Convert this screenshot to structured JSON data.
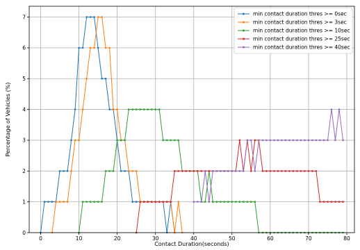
{
  "chart_data": {
    "type": "line",
    "xlabel": "Contact Duration(seconds)",
    "ylabel": "Percentage of Vehicles (%)",
    "xlim": [
      -3,
      82
    ],
    "ylim": [
      0,
      7.35
    ],
    "xticks": [
      0,
      10,
      20,
      30,
      40,
      50,
      60,
      70,
      80
    ],
    "yticks": [
      0,
      1,
      2,
      3,
      4,
      5,
      6,
      7
    ],
    "grid": true,
    "legend_position": "top-right",
    "series": [
      {
        "name": "min contact duration thres >= 0sec",
        "color": "#1f77b4",
        "points": [
          [
            0,
            0
          ],
          [
            1,
            1
          ],
          [
            2,
            1
          ],
          [
            3,
            1
          ],
          [
            4,
            1
          ],
          [
            5,
            2
          ],
          [
            6,
            2
          ],
          [
            7,
            2
          ],
          [
            8,
            3
          ],
          [
            9,
            4
          ],
          [
            10,
            6
          ],
          [
            11,
            6
          ],
          [
            12,
            7
          ],
          [
            13,
            7
          ],
          [
            14,
            7
          ],
          [
            15,
            6
          ],
          [
            16,
            5
          ],
          [
            17,
            5
          ],
          [
            18,
            4
          ],
          [
            19,
            4
          ],
          [
            20,
            3
          ],
          [
            21,
            2
          ],
          [
            22,
            2
          ],
          [
            23,
            2
          ],
          [
            24,
            1
          ],
          [
            25,
            1
          ],
          [
            26,
            1
          ],
          [
            27,
            1
          ],
          [
            28,
            1
          ],
          [
            29,
            1
          ],
          [
            30,
            1
          ],
          [
            31,
            1
          ],
          [
            32,
            1
          ],
          [
            33,
            0
          ],
          [
            34,
            1
          ],
          [
            35,
            0
          ]
        ]
      },
      {
        "name": "min contact duration thres >= 3sec",
        "color": "#ff7f0e",
        "points": [
          [
            3,
            0
          ],
          [
            4,
            1
          ],
          [
            5,
            1
          ],
          [
            6,
            1
          ],
          [
            7,
            1
          ],
          [
            8,
            2
          ],
          [
            9,
            3
          ],
          [
            10,
            3
          ],
          [
            11,
            4
          ],
          [
            12,
            5
          ],
          [
            13,
            6
          ],
          [
            14,
            6
          ],
          [
            15,
            7
          ],
          [
            16,
            7
          ],
          [
            17,
            6
          ],
          [
            18,
            6
          ],
          [
            19,
            4
          ],
          [
            20,
            4
          ],
          [
            21,
            3
          ],
          [
            22,
            3
          ],
          [
            23,
            2
          ],
          [
            24,
            2
          ],
          [
            25,
            2
          ],
          [
            26,
            1
          ],
          [
            27,
            1
          ],
          [
            28,
            1
          ],
          [
            29,
            1
          ],
          [
            30,
            1
          ],
          [
            31,
            1
          ],
          [
            32,
            1
          ],
          [
            33,
            1
          ],
          [
            34,
            1
          ],
          [
            35,
            0
          ],
          [
            36,
            1
          ],
          [
            37,
            0
          ]
        ]
      },
      {
        "name": "min contact duration thres >= 10sec",
        "color": "#2ca02c",
        "points": [
          [
            10,
            0
          ],
          [
            11,
            1
          ],
          [
            12,
            1
          ],
          [
            13,
            1
          ],
          [
            14,
            1
          ],
          [
            15,
            1
          ],
          [
            16,
            1
          ],
          [
            17,
            2
          ],
          [
            18,
            2
          ],
          [
            19,
            2
          ],
          [
            20,
            3
          ],
          [
            21,
            3
          ],
          [
            22,
            3
          ],
          [
            23,
            4
          ],
          [
            24,
            4
          ],
          [
            25,
            4
          ],
          [
            26,
            4
          ],
          [
            27,
            4
          ],
          [
            28,
            4
          ],
          [
            29,
            4
          ],
          [
            30,
            4
          ],
          [
            31,
            4
          ],
          [
            32,
            3
          ],
          [
            33,
            3
          ],
          [
            34,
            3
          ],
          [
            35,
            3
          ],
          [
            36,
            3
          ],
          [
            37,
            2
          ],
          [
            38,
            2
          ],
          [
            39,
            2
          ],
          [
            40,
            2
          ],
          [
            41,
            2
          ],
          [
            42,
            1
          ],
          [
            43,
            1
          ],
          [
            44,
            2
          ],
          [
            45,
            1
          ],
          [
            46,
            1
          ],
          [
            47,
            1
          ],
          [
            48,
            1
          ],
          [
            49,
            1
          ],
          [
            50,
            1
          ],
          [
            51,
            1
          ],
          [
            52,
            1
          ],
          [
            53,
            1
          ],
          [
            54,
            1
          ],
          [
            55,
            1
          ],
          [
            56,
            1
          ],
          [
            57,
            0
          ],
          [
            58,
            0
          ],
          [
            59,
            0
          ],
          [
            60,
            0
          ],
          [
            61,
            0
          ],
          [
            62,
            0
          ],
          [
            63,
            0
          ],
          [
            64,
            0
          ],
          [
            65,
            0
          ],
          [
            66,
            0
          ],
          [
            67,
            0
          ],
          [
            68,
            0
          ],
          [
            69,
            0
          ],
          [
            70,
            0
          ],
          [
            71,
            0
          ],
          [
            72,
            0
          ],
          [
            73,
            0
          ],
          [
            74,
            0
          ],
          [
            75,
            0
          ],
          [
            76,
            0
          ],
          [
            77,
            0
          ],
          [
            78,
            0
          ],
          [
            79,
            0
          ]
        ]
      },
      {
        "name": "min contact duration thres >= 25sec",
        "color": "#d62728",
        "points": [
          [
            25,
            0
          ],
          [
            26,
            1
          ],
          [
            27,
            1
          ],
          [
            28,
            1
          ],
          [
            29,
            1
          ],
          [
            30,
            1
          ],
          [
            31,
            1
          ],
          [
            32,
            1
          ],
          [
            33,
            1
          ],
          [
            34,
            1
          ],
          [
            35,
            2
          ],
          [
            36,
            2
          ],
          [
            37,
            2
          ],
          [
            38,
            2
          ],
          [
            39,
            2
          ],
          [
            40,
            2
          ],
          [
            41,
            2
          ],
          [
            42,
            2
          ],
          [
            43,
            2
          ],
          [
            44,
            2
          ],
          [
            45,
            2
          ],
          [
            46,
            2
          ],
          [
            47,
            2
          ],
          [
            48,
            2
          ],
          [
            49,
            2
          ],
          [
            50,
            2
          ],
          [
            51,
            2
          ],
          [
            52,
            3
          ],
          [
            53,
            2
          ],
          [
            54,
            3
          ],
          [
            55,
            2
          ],
          [
            56,
            3
          ],
          [
            57,
            3
          ],
          [
            58,
            2
          ],
          [
            59,
            2
          ],
          [
            60,
            2
          ],
          [
            61,
            2
          ],
          [
            62,
            2
          ],
          [
            63,
            2
          ],
          [
            64,
            2
          ],
          [
            65,
            2
          ],
          [
            66,
            2
          ],
          [
            67,
            2
          ],
          [
            68,
            2
          ],
          [
            69,
            2
          ],
          [
            70,
            2
          ],
          [
            71,
            2
          ],
          [
            72,
            2
          ],
          [
            73,
            1
          ],
          [
            74,
            1
          ],
          [
            75,
            1
          ],
          [
            76,
            1
          ],
          [
            77,
            1
          ],
          [
            78,
            1
          ],
          [
            79,
            1
          ]
        ]
      },
      {
        "name": "min contact duration thres >= 40sec",
        "color": "#9467bd",
        "points": [
          [
            40,
            1
          ],
          [
            41,
            1
          ],
          [
            42,
            1
          ],
          [
            43,
            2
          ],
          [
            44,
            1
          ],
          [
            45,
            2
          ],
          [
            46,
            2
          ],
          [
            47,
            2
          ],
          [
            48,
            2
          ],
          [
            49,
            2
          ],
          [
            50,
            2
          ],
          [
            51,
            2
          ],
          [
            52,
            2
          ],
          [
            53,
            2
          ],
          [
            54,
            3
          ],
          [
            55,
            3
          ],
          [
            56,
            2
          ],
          [
            57,
            3
          ],
          [
            58,
            3
          ],
          [
            59,
            3
          ],
          [
            60,
            3
          ],
          [
            61,
            3
          ],
          [
            62,
            3
          ],
          [
            63,
            3
          ],
          [
            64,
            3
          ],
          [
            65,
            3
          ],
          [
            66,
            3
          ],
          [
            67,
            3
          ],
          [
            68,
            3
          ],
          [
            69,
            3
          ],
          [
            70,
            3
          ],
          [
            71,
            3
          ],
          [
            72,
            3
          ],
          [
            73,
            3
          ],
          [
            74,
            3
          ],
          [
            75,
            3
          ],
          [
            76,
            4
          ],
          [
            77,
            3
          ],
          [
            78,
            4
          ],
          [
            79,
            3
          ]
        ]
      }
    ]
  }
}
